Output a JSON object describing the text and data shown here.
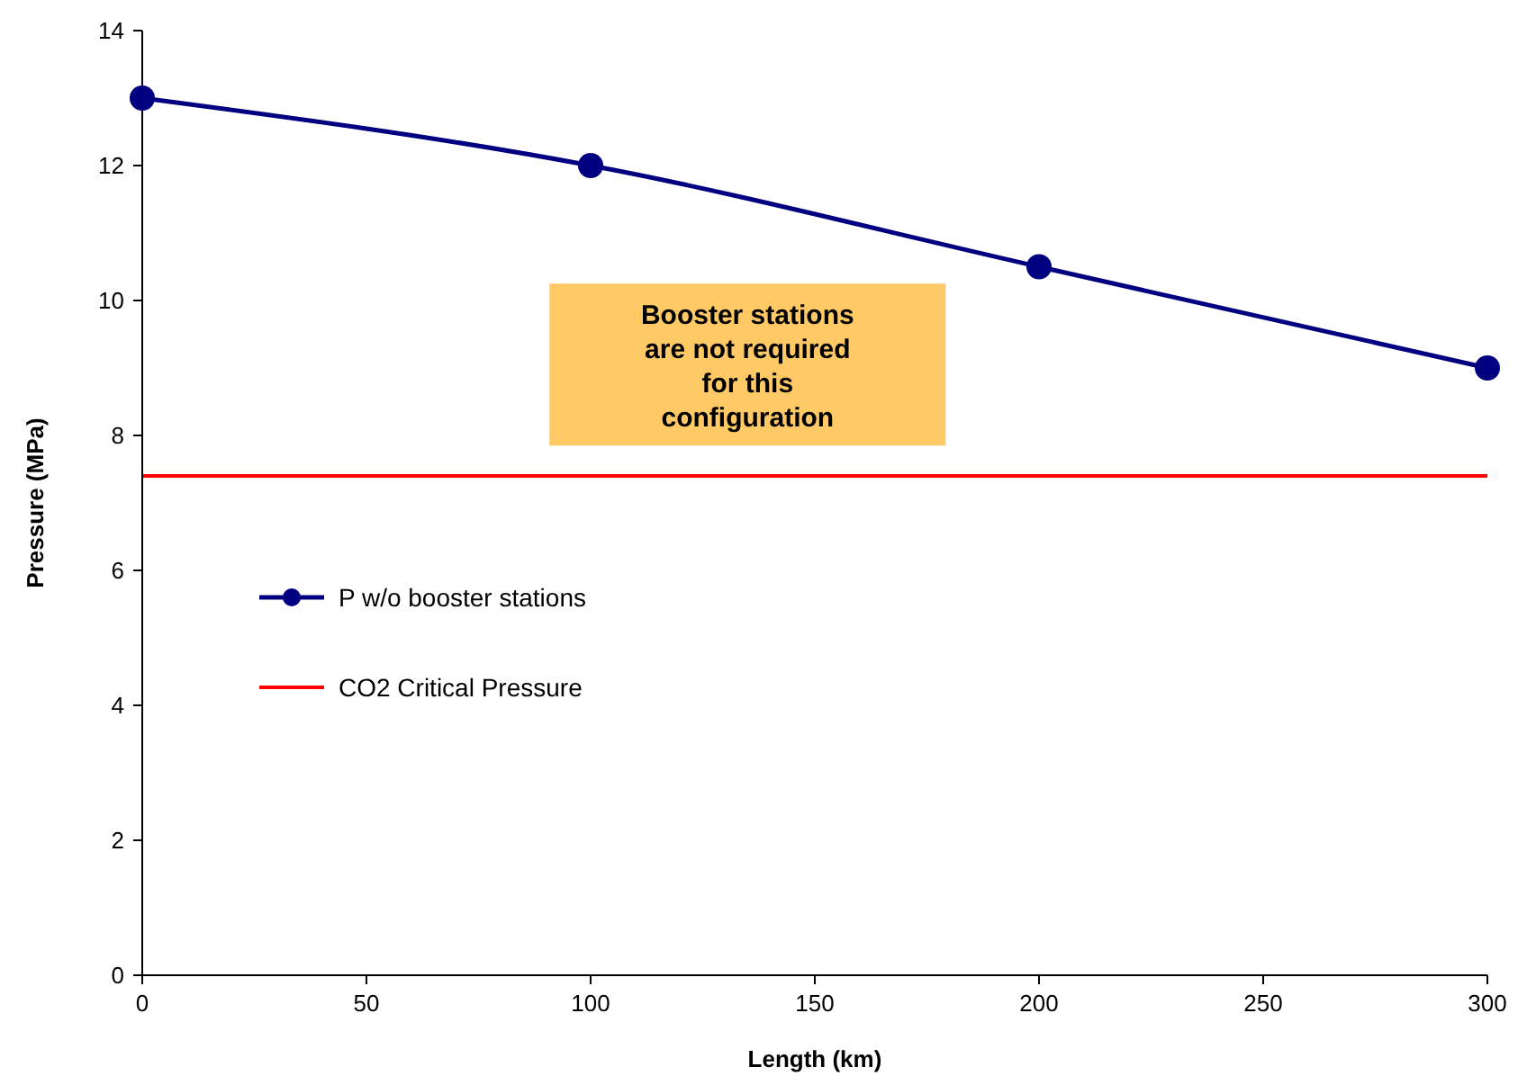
{
  "chart_data": {
    "type": "line",
    "xlabel": "Length (km)",
    "ylabel": "Pressure (MPa)",
    "x": [
      0,
      100,
      200,
      300
    ],
    "series": [
      {
        "name": "P w/o booster stations",
        "color": "#000080",
        "values": [
          13,
          12,
          10.5,
          9
        ]
      }
    ],
    "xlim": [
      0,
      300
    ],
    "xticks": [
      0,
      50,
      100,
      150,
      200,
      250,
      300
    ],
    "ylim": [
      0,
      14
    ],
    "yticks": [
      0,
      2,
      4,
      6,
      8,
      10,
      12,
      14
    ],
    "ref_lines": [
      {
        "axis": "y",
        "value": 7.4,
        "label": "CO2 Critical Pressure",
        "color": "#ff0000"
      }
    ],
    "annotations": [
      "Booster stations are not required for this configuration"
    ],
    "marker": "circle",
    "legend": "left",
    "grid": false
  }
}
